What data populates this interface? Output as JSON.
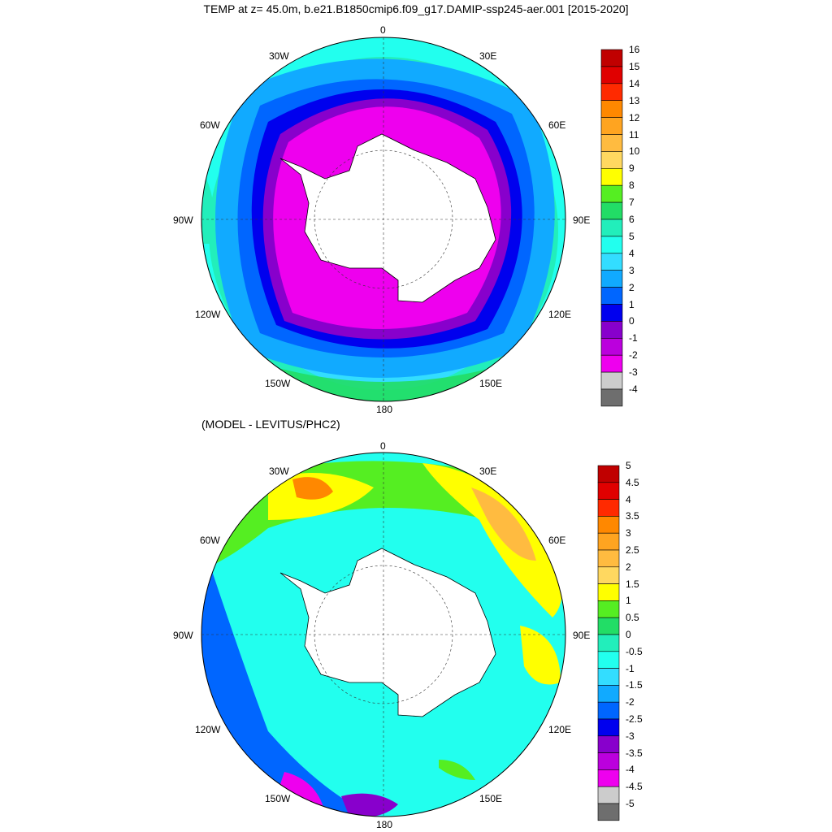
{
  "title": "TEMP at z=  45.0m, b.e21.B1850cmip6.f09_g17.DAMIP-ssp245-aer.001 [2015-2020]",
  "subtitle": "(MODEL - LEVITUS/PHC2)",
  "lon_labels": [
    "0",
    "30E",
    "60E",
    "90E",
    "120E",
    "150E",
    "180",
    "150W",
    "120W",
    "90W",
    "60W",
    "30W"
  ],
  "top_colorbar": {
    "labels": [
      "16",
      "15",
      "14",
      "13",
      "12",
      "11",
      "10",
      "9",
      "8",
      "7",
      "6",
      "5",
      "4",
      "3",
      "2",
      "1",
      "0",
      "-1",
      "-2",
      "-3",
      "-4"
    ],
    "colors": [
      "#c00000",
      "#e00000",
      "#ff2a00",
      "#ff8800",
      "#ffa420",
      "#ffbb40",
      "#ffd860",
      "#ffff00",
      "#55ee22",
      "#22dd66",
      "#22eebb",
      "#22ffee",
      "#33ddff",
      "#11aaff",
      "#0066ff",
      "#0000ee",
      "#8800cc",
      "#bb00dd",
      "#ee00ee",
      "#cccccc",
      "#6e6e6e"
    ]
  },
  "bottom_colorbar": {
    "labels": [
      "5",
      "4.5",
      "4",
      "3.5",
      "3",
      "2.5",
      "2",
      "1.5",
      "1",
      "0.5",
      "0",
      "-0.5",
      "-1",
      "-1.5",
      "-2",
      "-2.5",
      "-3",
      "-3.5",
      "-4",
      "-4.5",
      "-5"
    ],
    "colors": [
      "#c00000",
      "#e00000",
      "#ff2a00",
      "#ff8800",
      "#ffa420",
      "#ffbb40",
      "#ffd860",
      "#ffff00",
      "#55ee22",
      "#22dd66",
      "#22eebb",
      "#22ffee",
      "#33ddff",
      "#11aaff",
      "#0066ff",
      "#0000ee",
      "#8800cc",
      "#bb00dd",
      "#ee00ee",
      "#cccccc",
      "#6e6e6e"
    ]
  }
}
